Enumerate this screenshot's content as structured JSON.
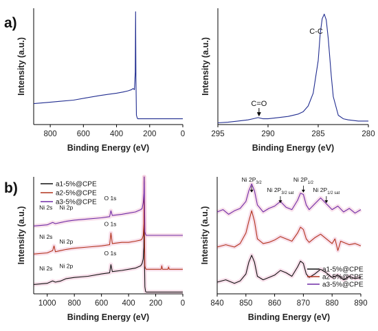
{
  "panel_labels": {
    "a": "a)",
    "b": "b)"
  },
  "colors": {
    "navy": "#1f2b8f",
    "black": "#111111",
    "red": "#b2321b",
    "purple": "#6f2aa6",
    "pink_fill": "#f3c6da"
  },
  "chart_data": [
    {
      "id": "a-left",
      "type": "line",
      "xlabel": "Binding Energy (eV)",
      "ylabel": "Intensity (a.u.)",
      "xlim": [
        900,
        0
      ],
      "ylim": [
        0,
        100
      ],
      "x_ticks": [
        800,
        600,
        400,
        200,
        0
      ],
      "x_tick_labels": [
        "800",
        "600",
        "400",
        "200",
        "0"
      ],
      "series": [
        {
          "color": "#1f2b8f",
          "x": [
            900,
            820,
            740,
            660,
            580,
            500,
            450,
            400,
            360,
            330,
            310,
            300,
            292,
            287,
            285,
            283,
            280,
            276,
            272,
            260,
            200,
            100,
            0
          ],
          "y": [
            18,
            19,
            20,
            21,
            23,
            25,
            26,
            27,
            28,
            29,
            30,
            31,
            30,
            45,
            97,
            40,
            8,
            6,
            5,
            5,
            5,
            5,
            5
          ]
        }
      ]
    },
    {
      "id": "a-right",
      "type": "line",
      "xlabel": "Binding Energy (eV)",
      "ylabel": "Intensity (a.u.)",
      "xlim": [
        295,
        280
      ],
      "ylim": [
        0,
        100
      ],
      "x_ticks": [
        295,
        290,
        285,
        280
      ],
      "x_tick_labels": [
        "295",
        "290",
        "285",
        "280"
      ],
      "annotations": [
        {
          "text": "C-C",
          "x": 285.2,
          "y": 78
        },
        {
          "text": "C=O",
          "x": 290.9,
          "y": 16,
          "arrow_to_y": 7
        }
      ],
      "series": [
        {
          "color": "#1f2b8f",
          "x": [
            295,
            294,
            293,
            292,
            291.5,
            291,
            290.5,
            290,
            289,
            288,
            287,
            286.5,
            286,
            285.5,
            285,
            284.8,
            284.6,
            284.4,
            284.2,
            284,
            283.7,
            283.5,
            283,
            282.5,
            282,
            281,
            280
          ],
          "y": [
            1.5,
            2,
            3,
            4,
            5,
            6,
            5,
            5,
            6,
            7,
            9,
            11,
            16,
            27,
            55,
            78,
            91,
            95,
            90,
            74,
            42,
            24,
            8,
            5,
            4,
            3,
            3
          ]
        }
      ]
    },
    {
      "id": "b-left",
      "type": "line",
      "xlabel": "Binding Energy (eV)",
      "ylabel": "Intensity (a.u.)",
      "xlim": [
        1100,
        0
      ],
      "ylim": [
        0,
        100
      ],
      "x_ticks": [
        1000,
        800,
        600,
        400,
        200,
        0
      ],
      "x_tick_labels": [
        "1000",
        "800",
        "600",
        "400",
        "200",
        "0"
      ],
      "legend": {
        "position": "top-left",
        "entries": [
          {
            "label": "a1-5%@CPE",
            "color": "#111111"
          },
          {
            "label": "a2-5%@CPE",
            "color": "#b2321b"
          },
          {
            "label": "a3-5%@CPE",
            "color": "#6f2aa6"
          }
        ]
      },
      "peak_labels": [
        {
          "text": "Ni 2s",
          "x": 1010,
          "y": 72
        },
        {
          "text": "Ni 2p",
          "x": 860,
          "y": 72
        },
        {
          "text": "O 1s",
          "x": 535,
          "y": 80
        },
        {
          "text": "Ni 2s",
          "x": 1010,
          "y": 47
        },
        {
          "text": "Ni 2p",
          "x": 860,
          "y": 43
        },
        {
          "text": "O 1s",
          "x": 535,
          "y": 58
        },
        {
          "text": "Ni 2s",
          "x": 1010,
          "y": 20
        },
        {
          "text": "Ni 2p",
          "x": 860,
          "y": 22
        },
        {
          "text": "O 1s",
          "x": 535,
          "y": 33
        }
      ],
      "series": [
        {
          "color": "#111111",
          "x": [
            1100,
            1000,
            960,
            940,
            900,
            860,
            800,
            700,
            600,
            540,
            530,
            520,
            450,
            400,
            350,
            310,
            300,
            292,
            287,
            285,
            283,
            280,
            275,
            270,
            250,
            200,
            100,
            0
          ],
          "y": [
            8,
            9,
            11,
            10,
            11,
            13,
            14,
            15,
            17,
            18,
            25,
            19,
            20,
            21,
            22,
            24,
            26,
            30,
            40,
            95,
            30,
            6,
            2,
            1.5,
            1.5,
            1.5,
            1.5,
            1.5
          ]
        },
        {
          "color": "#b2321b",
          "x": [
            1100,
            1000,
            960,
            950,
            940,
            900,
            860,
            800,
            700,
            600,
            540,
            530,
            520,
            450,
            400,
            350,
            310,
            300,
            292,
            287,
            285,
            283,
            280,
            276,
            270,
            250,
            200,
            160,
            155,
            150,
            110,
            105,
            100,
            50,
            0
          ],
          "y": [
            34,
            35,
            37,
            41,
            36,
            37,
            38,
            39,
            40,
            41,
            42,
            52,
            43,
            44,
            44,
            45,
            46,
            47,
            50,
            60,
            100,
            50,
            24,
            22,
            21,
            21,
            21,
            21,
            24,
            21,
            21,
            23,
            21,
            21,
            21
          ]
        },
        {
          "color": "#6f2aa6",
          "x": [
            1100,
            1000,
            960,
            940,
            900,
            860,
            800,
            700,
            600,
            540,
            530,
            520,
            450,
            400,
            350,
            310,
            300,
            292,
            287,
            285,
            283,
            280,
            275,
            270,
            250,
            200,
            100,
            0
          ],
          "y": [
            58,
            59,
            61,
            60,
            61,
            62,
            63,
            64,
            65,
            66,
            71,
            67,
            68,
            69,
            70,
            72,
            73,
            78,
            86,
            100,
            80,
            53,
            51,
            50,
            50,
            50,
            50,
            50
          ]
        }
      ]
    },
    {
      "id": "b-right",
      "type": "line",
      "xlabel": "Binding Energy (eV)",
      "ylabel": "Intensity (a.u.)",
      "xlim": [
        840,
        890
      ],
      "ylim": [
        0,
        100
      ],
      "x_ticks": [
        840,
        850,
        860,
        870,
        880,
        890
      ],
      "x_tick_labels": [
        "840",
        "850",
        "860",
        "870",
        "880",
        "890"
      ],
      "legend": {
        "position": "bottom-right",
        "entries": [
          {
            "label": "a1-5%@CPE",
            "color": "#111111"
          },
          {
            "label": "a2-5%@CPE",
            "color": "#b2321b"
          },
          {
            "label": "a3-5%@CPE",
            "color": "#6f2aa6"
          }
        ]
      },
      "peak_labels": [
        {
          "id": "ni2p32",
          "text": "Ni 2P",
          "sub": "3/2",
          "x": 852,
          "y": 96
        },
        {
          "id": "ni2p32sat",
          "text": "Ni 2P",
          "sub": "3/2 sat",
          "x": 862,
          "y": 87
        },
        {
          "id": "ni2p12",
          "text": "Ni 2P",
          "sub": "1/2",
          "x": 870,
          "y": 96
        },
        {
          "id": "ni2p12sat",
          "text": "Ni 2P",
          "sub": "1/2  sat",
          "x": 878,
          "y": 87
        }
      ],
      "series": [
        {
          "color": "#111111",
          "x": [
            840,
            843,
            846,
            848,
            850,
            851,
            852,
            853,
            854,
            856,
            858,
            860,
            862,
            864,
            866,
            868,
            869,
            870,
            871,
            872,
            874,
            876,
            878,
            880,
            882,
            884,
            886,
            888,
            890
          ],
          "y": [
            10,
            12,
            9,
            11,
            17,
            27,
            33,
            27,
            15,
            12,
            14,
            16,
            20,
            18,
            15,
            23,
            28,
            26,
            17,
            14,
            17,
            21,
            18,
            14,
            16,
            12,
            15,
            13,
            14
          ]
        },
        {
          "color": "#b2321b",
          "x": [
            840,
            843,
            846,
            848,
            850,
            851,
            852,
            853,
            854,
            856,
            858,
            860,
            862,
            864,
            866,
            868,
            869,
            870,
            871,
            872,
            874,
            876,
            878,
            880,
            881,
            882,
            883,
            884,
            886,
            888,
            890
          ],
          "y": [
            40,
            42,
            40,
            43,
            52,
            62,
            71,
            62,
            47,
            43,
            44,
            46,
            49,
            47,
            45,
            52,
            57,
            55,
            47,
            44,
            48,
            51,
            47,
            43,
            47,
            37,
            45,
            44,
            42,
            43,
            41
          ]
        },
        {
          "color": "#6f2aa6",
          "x": [
            840,
            842,
            844,
            846,
            848,
            850,
            851,
            852,
            853,
            854,
            856,
            858,
            860,
            862,
            864,
            866,
            868,
            869,
            870,
            871,
            872,
            874,
            876,
            878,
            880,
            882,
            884,
            886,
            888,
            890
          ],
          "y": [
            70,
            72,
            68,
            71,
            73,
            79,
            88,
            94,
            88,
            76,
            70,
            73,
            75,
            79,
            74,
            72,
            80,
            86,
            85,
            76,
            72,
            77,
            82,
            77,
            72,
            75,
            70,
            73,
            69,
            72
          ]
        }
      ]
    }
  ]
}
